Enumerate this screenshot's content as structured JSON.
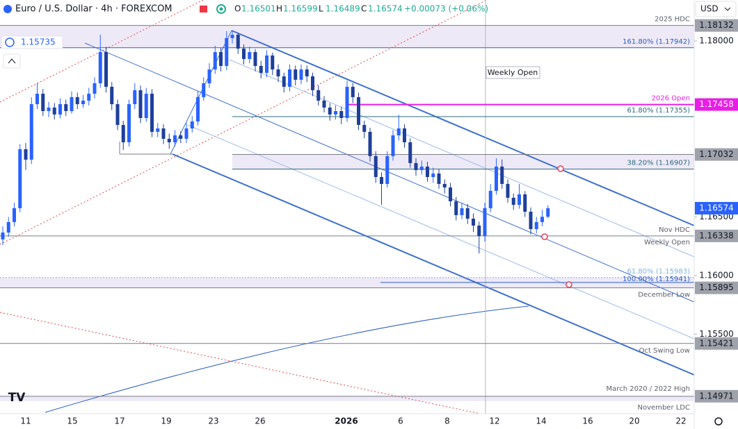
{
  "chart_data": {
    "type": "candlestick",
    "title": "Euro / U.S. Dollar · 4h · FOREXCOM",
    "currency": "USD",
    "ohlc_prefixes": [
      "O",
      "H",
      "L",
      "C"
    ],
    "change": "+0.00073 (+0.06%)",
    "cursor_label": 1.15735,
    "up_color": "#2962ff",
    "down_color": "#1e3f9a",
    "ylim": [
      1.14822,
      1.18349
    ],
    "yticks": [
      {
        "value": 1.18,
        "label": "1.18000"
      },
      {
        "value": 1.165,
        "label": "1.16500"
      },
      {
        "value": 1.16,
        "label": "1.16000"
      },
      {
        "value": 1.155,
        "label": "1.15500"
      }
    ],
    "x_labels": [
      "11",
      "15",
      "17",
      "19",
      "23",
      "26",
      "2026",
      "6",
      "8",
      "12",
      "14",
      "16",
      "20",
      "22"
    ],
    "candles": [
      [
        1.16308,
        1.1642,
        1.1626,
        1.16367
      ],
      [
        1.16367,
        1.165,
        1.1633,
        1.16456
      ],
      [
        1.16456,
        1.1662,
        1.1642,
        1.16574
      ],
      [
        1.16574,
        1.1712,
        1.1654,
        1.17077
      ],
      [
        1.17077,
        1.1713,
        1.169,
        1.16988
      ],
      [
        1.16988,
        1.1752,
        1.1695,
        1.17461
      ],
      [
        1.17461,
        1.1764,
        1.1742,
        1.1755
      ],
      [
        1.1755,
        1.1759,
        1.1736,
        1.17402
      ],
      [
        1.17402,
        1.1748,
        1.1735,
        1.17432
      ],
      [
        1.17432,
        1.1747,
        1.1733,
        1.17373
      ],
      [
        1.17373,
        1.1751,
        1.1734,
        1.17461
      ],
      [
        1.17461,
        1.175,
        1.1736,
        1.17402
      ],
      [
        1.17402,
        1.1757,
        1.1738,
        1.17521
      ],
      [
        1.17521,
        1.1756,
        1.1742,
        1.17461
      ],
      [
        1.17461,
        1.1754,
        1.1743,
        1.17491
      ],
      [
        1.17491,
        1.176,
        1.1745,
        1.1755
      ],
      [
        1.1755,
        1.1769,
        1.1751,
        1.17639
      ],
      [
        1.17639,
        1.18053,
        1.176,
        1.17905
      ],
      [
        1.17905,
        1.1795,
        1.1756,
        1.17609
      ],
      [
        1.17609,
        1.1765,
        1.1741,
        1.17461
      ],
      [
        1.17461,
        1.175,
        1.1724,
        1.17284
      ],
      [
        1.17284,
        1.1732,
        1.1707,
        1.17136
      ],
      [
        1.17136,
        1.175,
        1.171,
        1.17461
      ],
      [
        1.17461,
        1.1764,
        1.1742,
        1.1758
      ],
      [
        1.1758,
        1.1762,
        1.173,
        1.17343
      ],
      [
        1.17343,
        1.176,
        1.1731,
        1.1755
      ],
      [
        1.1755,
        1.1759,
        1.1718,
        1.17225
      ],
      [
        1.17225,
        1.173,
        1.1718,
        1.17254
      ],
      [
        1.17254,
        1.1729,
        1.1712,
        1.17166
      ],
      [
        1.17166,
        1.1721,
        1.1708,
        1.17136
      ],
      [
        1.17136,
        1.1724,
        1.171,
        1.17195
      ],
      [
        1.17195,
        1.1723,
        1.1713,
        1.17166
      ],
      [
        1.17166,
        1.173,
        1.1713,
        1.17254
      ],
      [
        1.17254,
        1.1736,
        1.1722,
        1.17314
      ],
      [
        1.17314,
        1.1757,
        1.1728,
        1.17521
      ],
      [
        1.17521,
        1.1769,
        1.1749,
        1.17639
      ],
      [
        1.17639,
        1.1781,
        1.176,
        1.17757
      ],
      [
        1.17757,
        1.1796,
        1.1772,
        1.17905
      ],
      [
        1.17905,
        1.1794,
        1.1774,
        1.17787
      ],
      [
        1.17787,
        1.18083,
        1.1775,
        1.18024
      ],
      [
        1.18024,
        1.1809,
        1.1798,
        1.18053
      ],
      [
        1.18053,
        1.1807,
        1.1789,
        1.17935
      ],
      [
        1.17935,
        1.1797,
        1.178,
        1.17846
      ],
      [
        1.17846,
        1.1795,
        1.1781,
        1.17905
      ],
      [
        1.17905,
        1.1793,
        1.1774,
        1.17787
      ],
      [
        1.17787,
        1.1783,
        1.1768,
        1.17728
      ],
      [
        1.17728,
        1.1792,
        1.1769,
        1.17876
      ],
      [
        1.17876,
        1.179,
        1.1771,
        1.17757
      ],
      [
        1.17757,
        1.178,
        1.1765,
        1.17698
      ],
      [
        1.17698,
        1.1773,
        1.1756,
        1.17609
      ],
      [
        1.17609,
        1.178,
        1.1757,
        1.17757
      ],
      [
        1.17757,
        1.1779,
        1.1762,
        1.17669
      ],
      [
        1.17669,
        1.178,
        1.1763,
        1.17757
      ],
      [
        1.17757,
        1.1779,
        1.1765,
        1.17698
      ],
      [
        1.17698,
        1.1773,
        1.1753,
        1.1758
      ],
      [
        1.1758,
        1.1762,
        1.1745,
        1.17491
      ],
      [
        1.17491,
        1.1753,
        1.1739,
        1.17432
      ],
      [
        1.17432,
        1.1747,
        1.1732,
        1.17373
      ],
      [
        1.17373,
        1.1745,
        1.1733,
        1.17402
      ],
      [
        1.17402,
        1.1744,
        1.1729,
        1.17343
      ],
      [
        1.17343,
        1.1766,
        1.1731,
        1.17609
      ],
      [
        1.17609,
        1.1764,
        1.1747,
        1.17521
      ],
      [
        1.17521,
        1.1756,
        1.1724,
        1.17284
      ],
      [
        1.17284,
        1.1732,
        1.1717,
        1.17225
      ],
      [
        1.17225,
        1.1726,
        1.1697,
        1.17018
      ],
      [
        1.17018,
        1.1706,
        1.1679,
        1.1684
      ],
      [
        1.1684,
        1.1688,
        1.16603,
        1.16781
      ],
      [
        1.16781,
        1.1706,
        1.1675,
        1.17018
      ],
      [
        1.17018,
        1.1724,
        1.1698,
        1.17195
      ],
      [
        1.17195,
        1.1737,
        1.1715,
        1.17254
      ],
      [
        1.17254,
        1.1729,
        1.1709,
        1.17136
      ],
      [
        1.17136,
        1.1717,
        1.1692,
        1.16959
      ],
      [
        1.16959,
        1.17,
        1.1685,
        1.16899
      ],
      [
        1.16899,
        1.1698,
        1.1686,
        1.16929
      ],
      [
        1.16929,
        1.1697,
        1.168,
        1.1684
      ],
      [
        1.1684,
        1.1692,
        1.1679,
        1.1687
      ],
      [
        1.1687,
        1.1691,
        1.1674,
        1.16781
      ],
      [
        1.16781,
        1.1682,
        1.167,
        1.16751
      ],
      [
        1.16751,
        1.1679,
        1.1659,
        1.16633
      ],
      [
        1.16633,
        1.1667,
        1.1647,
        1.16515
      ],
      [
        1.16515,
        1.1662,
        1.1648,
        1.16574
      ],
      [
        1.16574,
        1.1661,
        1.1644,
        1.16485
      ],
      [
        1.16485,
        1.1653,
        1.1637,
        1.16426
      ],
      [
        1.16426,
        1.1646,
        1.16189,
        1.16337
      ],
      [
        1.16337,
        1.1662,
        1.1629,
        1.16574
      ],
      [
        1.16574,
        1.1678,
        1.1654,
        1.16722
      ],
      [
        1.16722,
        1.17,
        1.1669,
        1.16929
      ],
      [
        1.16929,
        1.1699,
        1.1674,
        1.16781
      ],
      [
        1.16781,
        1.1682,
        1.1662,
        1.16663
      ],
      [
        1.16663,
        1.167,
        1.1656,
        1.16603
      ],
      [
        1.16603,
        1.1678,
        1.1657,
        1.16692
      ],
      [
        1.16692,
        1.1672,
        1.165,
        1.16544
      ],
      [
        1.16544,
        1.1658,
        1.1635,
        1.16396
      ],
      [
        1.16396,
        1.165,
        1.1636,
        1.16456
      ],
      [
        1.16456,
        1.1656,
        1.1642,
        1.16501
      ],
      [
        1.16501,
        1.16599,
        1.16489,
        1.16574
      ]
    ],
    "levels": [
      {
        "value": 1.18132,
        "labels": [
          "2025 HDC"
        ],
        "color": "#787b86",
        "badge": true
      },
      {
        "value": 1.17942,
        "labels": [
          "161.80% (1.17942)"
        ],
        "color": "#2a5fc4",
        "badge": false
      },
      {
        "value": 1.17458,
        "labels": [
          "2026 Open"
        ],
        "color": "#e91ee6",
        "badge": true
      },
      {
        "value": 1.17355,
        "labels": [
          "61.80% (1.17355)"
        ],
        "color": "#2b6a7c",
        "badge": false
      },
      {
        "value": 1.17032,
        "labels": [],
        "color": "#787b86",
        "badge": true
      },
      {
        "value": 1.16907,
        "labels": [
          "38.20% (1.16907)"
        ],
        "color": "#2b6a7c",
        "badge": false
      },
      {
        "value": 1.16338,
        "labels": [
          "Nov HDC",
          "Weekly Open"
        ],
        "color": "#787b86",
        "badge": true
      },
      {
        "value": 1.15983,
        "labels": [
          "61.80% (1.15983)"
        ],
        "color": "#7fb2e5",
        "badge": false
      },
      {
        "value": 1.15941,
        "labels": [
          "100.00% (1.15941)"
        ],
        "color": "#2a5fc4",
        "badge": false
      },
      {
        "value": 1.15895,
        "labels": [
          "December Low"
        ],
        "color": "#787b86",
        "badge": true
      },
      {
        "value": 1.15421,
        "labels": [
          "Oct Swing Low"
        ],
        "color": "#787b86",
        "badge": true
      },
      {
        "value": 1.14971,
        "labels": [
          "March 2020 / 2022 High",
          "November LDC"
        ],
        "color": "#787b86",
        "badge": true
      }
    ],
    "zones": [
      {
        "from": 1.18132,
        "to": 1.17942
      },
      {
        "from": 1.17032,
        "to": 1.16907
      },
      {
        "from": 1.15983,
        "to": 1.15895
      },
      {
        "from": 1.14971,
        "to": 1.1493
      }
    ],
    "annotations": [
      "Weekly Open"
    ]
  }
}
